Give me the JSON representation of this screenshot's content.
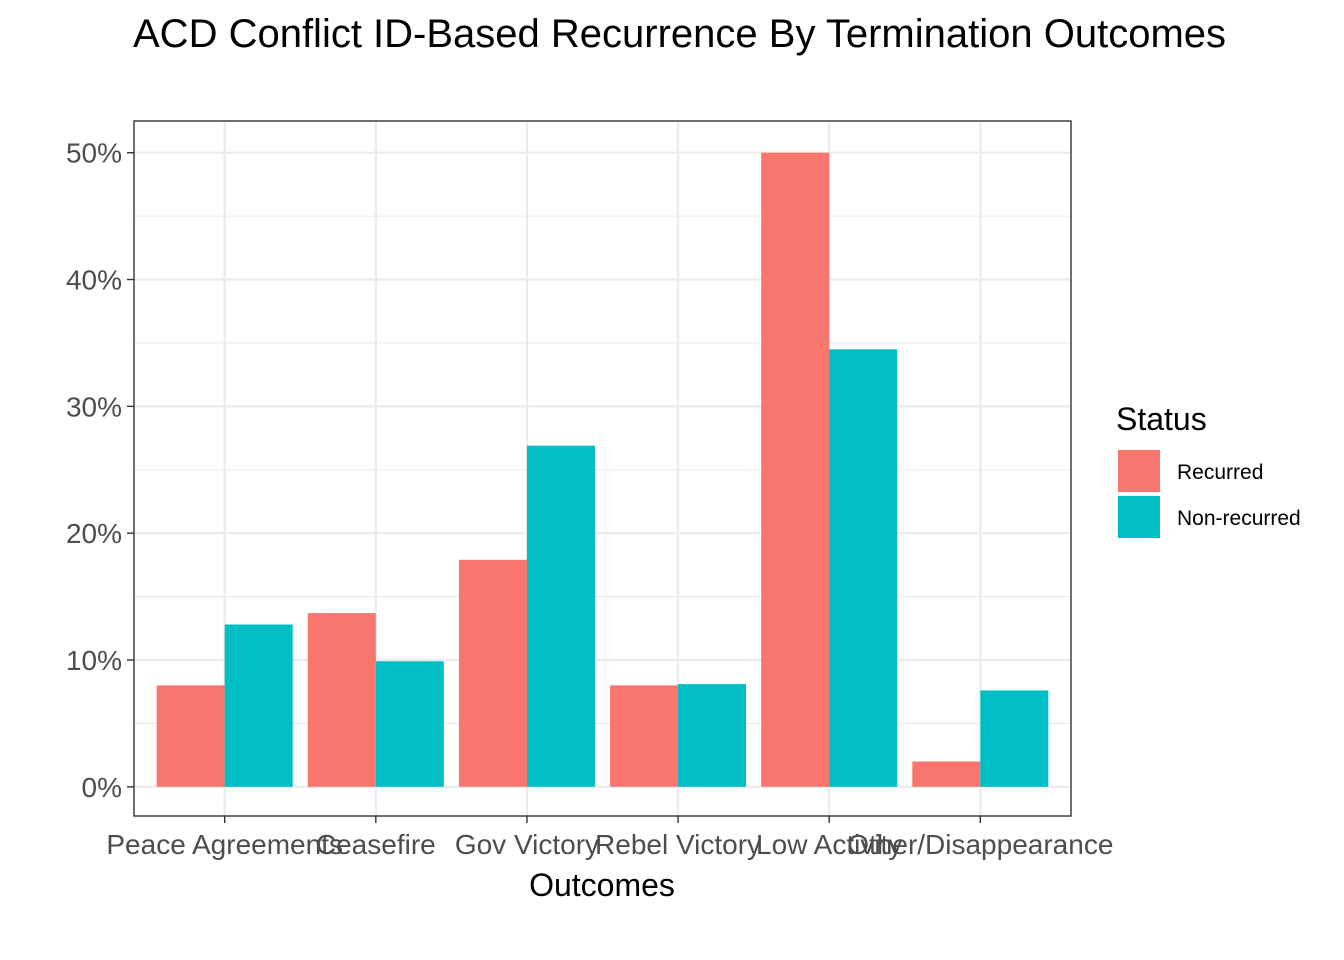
{
  "chart_data": {
    "type": "bar",
    "title": "ACD Conflict ID-Based Recurrence By Termination Outcomes",
    "xlabel": "Outcomes",
    "ylabel": "",
    "categories": [
      "Peace Agreements",
      "Ceasefire",
      "Gov Victory",
      "Rebel Victory",
      "Low Activity",
      "Other/Disappearance"
    ],
    "series": [
      {
        "name": "Recurred",
        "color": "#F8766D",
        "values": [
          8.0,
          13.7,
          17.9,
          8.0,
          50.0,
          2.0
        ]
      },
      {
        "name": "Non-recurred",
        "color": "#00BFC4",
        "values": [
          12.8,
          9.9,
          26.9,
          8.1,
          34.5,
          7.6
        ]
      }
    ],
    "ylim": [
      -2.3,
      52.5
    ],
    "yticks": [
      0,
      10,
      20,
      30,
      40,
      50
    ],
    "ytick_labels": [
      "0%",
      "10%",
      "20%",
      "30%",
      "40%",
      "50%"
    ],
    "grid": true,
    "legend": {
      "title": "Status",
      "position": "right"
    }
  }
}
